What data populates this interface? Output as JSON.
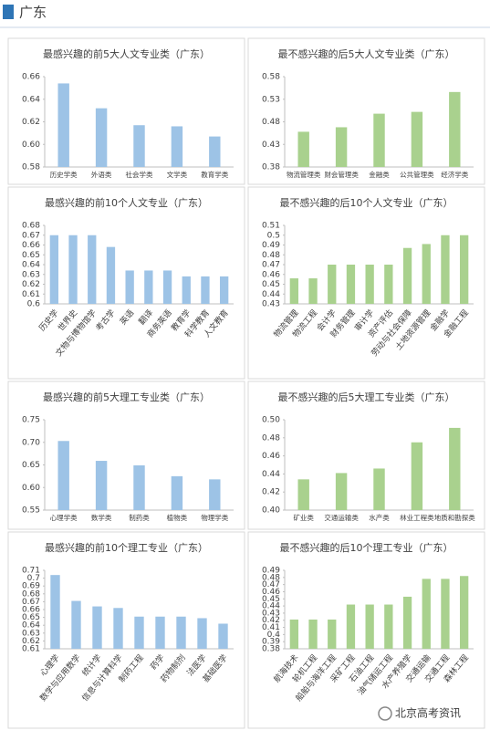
{
  "header": {
    "title": "广东"
  },
  "watermark": "北京高考资讯",
  "chart_data": [
    {
      "type": "bar",
      "title": "最感兴趣的前5大人文专业类（广东）",
      "color": "#9dc3e6",
      "categories": [
        "历史学类",
        "外语类",
        "社会学类",
        "文学类",
        "教育学类"
      ],
      "values": [
        0.654,
        0.632,
        0.617,
        0.616,
        0.607
      ],
      "ylim": [
        0.58,
        0.66
      ],
      "yticks": [
        0.58,
        {
          "value": 0.6,
          "label": "0.60"
        },
        0.62,
        0.64,
        0.66
      ]
    },
    {
      "type": "bar",
      "title": "最不感兴趣的后5大人文专业类（广东）",
      "color": "#a9d18e",
      "categories": [
        "物流管理类",
        "财会管理类",
        "金融类",
        "公共管理类",
        "经济学类"
      ],
      "values": [
        0.458,
        0.468,
        0.498,
        0.502,
        0.546
      ],
      "ylim": [
        0.38,
        0.58
      ],
      "yticks": [
        0.38,
        0.43,
        0.48,
        0.53,
        0.58
      ]
    },
    {
      "type": "bar",
      "title": "最感兴趣的前10个人文专业（广东）",
      "color": "#9dc3e6",
      "categories": [
        "历史学",
        "世界史",
        "文物与博物馆学",
        "考古学",
        "英语",
        "翻译",
        "商务英语",
        "教育学",
        "科学教育",
        "人文教育"
      ],
      "values": [
        0.67,
        0.67,
        0.67,
        0.658,
        0.634,
        0.634,
        0.634,
        0.628,
        0.628,
        0.628
      ],
      "ylim": [
        0.6,
        0.68
      ],
      "yticks": [
        0.6,
        0.61,
        0.62,
        0.63,
        0.64,
        0.65,
        0.66,
        0.67,
        0.68
      ]
    },
    {
      "type": "bar",
      "title": "最不感兴趣的后10个人文专业（广东）",
      "color": "#a9d18e",
      "categories": [
        "物流管理",
        "物流工程",
        "会计学",
        "财务管理",
        "审计学",
        "资产评估",
        "劳动与社会保障",
        "土地资源管理",
        "金融学",
        "金融工程"
      ],
      "values": [
        0.456,
        0.456,
        0.47,
        0.47,
        0.47,
        0.47,
        0.487,
        0.491,
        0.5,
        0.5
      ],
      "ylim": [
        0.43,
        0.51
      ],
      "yticks": [
        0.43,
        0.44,
        0.45,
        0.46,
        0.47,
        0.48,
        0.49,
        0.5,
        0.51
      ]
    },
    {
      "type": "bar",
      "title": "最感兴趣的前5大理工专业类（广东）",
      "color": "#9dc3e6",
      "categories": [
        "心理学类",
        "数学类",
        "制药类",
        "植物类",
        "物理学类"
      ],
      "values": [
        0.703,
        0.659,
        0.649,
        0.625,
        0.618
      ],
      "ylim": [
        0.55,
        0.75
      ],
      "yticks": [
        0.55,
        {
          "value": 0.6,
          "label": "0.60"
        },
        0.65,
        {
          "value": 0.7,
          "label": "0.70"
        },
        0.75
      ]
    },
    {
      "type": "bar",
      "title": "最不感兴趣的后5大理工专业类（广东）",
      "color": "#a9d18e",
      "categories": [
        "矿业类",
        "交通运输类",
        "水产类",
        "林业工程类",
        "地质和勘探类"
      ],
      "values": [
        0.434,
        0.441,
        0.446,
        0.475,
        0.491
      ],
      "ylim": [
        0.4,
        0.5
      ],
      "yticks": [
        {
          "value": 0.4,
          "label": "0.40"
        },
        0.42,
        0.44,
        0.46,
        0.48,
        {
          "value": 0.5,
          "label": "0.50"
        }
      ]
    },
    {
      "type": "bar",
      "title": "最感兴趣的前10个理工专业（广东）",
      "color": "#9dc3e6",
      "categories": [
        "心理学",
        "数学与应用数学",
        "统计学",
        "信息与计算科学",
        "制药工程",
        "药学",
        "药物制剂",
        "法医学",
        "基础医学"
      ],
      "values": [
        0.704,
        0.671,
        0.664,
        0.662,
        0.651,
        0.651,
        0.651,
        0.649,
        0.642
      ],
      "ylim": [
        0.61,
        0.71
      ],
      "yticks": [
        0.61,
        0.62,
        0.63,
        0.64,
        0.65,
        0.66,
        0.67,
        0.68,
        0.69,
        0.7,
        0.71
      ]
    },
    {
      "type": "bar",
      "title": "最不感兴趣的后10个理工专业（广东）",
      "color": "#a9d18e",
      "categories": [
        "航海技术",
        "轮机工程",
        "船舶与海洋工程",
        "采矿工程",
        "石油工程",
        "油气储运工程",
        "水产养殖学",
        "交通运输",
        "交通工程",
        "森林工程"
      ],
      "values": [
        0.421,
        0.421,
        0.421,
        0.442,
        0.442,
        0.442,
        0.453,
        0.478,
        0.478,
        0.482
      ],
      "ylim": [
        0.38,
        0.49
      ],
      "yticks": [
        0.38,
        0.39,
        0.4,
        0.41,
        0.42,
        0.43,
        0.44,
        0.45,
        0.46,
        0.47,
        0.48,
        0.49
      ]
    }
  ]
}
